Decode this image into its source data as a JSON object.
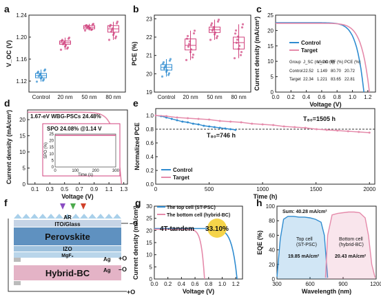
{
  "chart_data": [
    {
      "panel": "a",
      "type": "box",
      "categories": [
        "Control",
        "20 nm",
        "50 nm",
        "80 nm"
      ],
      "ylabel": "V_OC (V)",
      "ylim": [
        1.1,
        1.24
      ],
      "yticks": [
        "1.12",
        "1.16",
        "1.20",
        "1.24"
      ],
      "colors": [
        "#2e8bd0",
        "#d0427d",
        "#d0427d",
        "#d0427d"
      ],
      "boxes": [
        {
          "q1": 1.126,
          "median": 1.13,
          "q3": 1.134,
          "min": 1.119,
          "max": 1.141
        },
        {
          "q1": 1.187,
          "median": 1.19,
          "q3": 1.193,
          "min": 1.177,
          "max": 1.199
        },
        {
          "q1": 1.215,
          "median": 1.218,
          "q3": 1.221,
          "min": 1.212,
          "max": 1.224
        },
        {
          "q1": 1.209,
          "median": 1.215,
          "q3": 1.221,
          "min": 1.195,
          "max": 1.228
        }
      ]
    },
    {
      "panel": "b",
      "type": "box",
      "categories": [
        "Control",
        "20 nm",
        "50 nm",
        "80 nm"
      ],
      "ylabel": "PCE (%)",
      "ylim": [
        19,
        23.2
      ],
      "yticks": [
        "19",
        "20",
        "21",
        "22",
        "23"
      ],
      "colors": [
        "#2e8bd0",
        "#d0427d",
        "#d0427d",
        "#d0427d"
      ],
      "boxes": [
        {
          "q1": 20.2,
          "median": 20.35,
          "q3": 20.5,
          "min": 19.85,
          "max": 20.8
        },
        {
          "q1": 21.3,
          "median": 21.55,
          "q3": 21.9,
          "min": 20.75,
          "max": 22.35
        },
        {
          "q1": 22.25,
          "median": 22.4,
          "q3": 22.55,
          "min": 21.85,
          "max": 22.95
        },
        {
          "q1": 21.35,
          "median": 21.7,
          "q3": 22.0,
          "min": 20.85,
          "max": 22.7
        }
      ]
    },
    {
      "panel": "c",
      "type": "line",
      "xlabel": "Voltage (V)",
      "ylabel": "Current density (mA/cm²)",
      "xlim": [
        0,
        1.3
      ],
      "ylim": [
        0,
        25
      ],
      "xticks": [
        "0.0",
        "0.2",
        "0.4",
        "0.6",
        "0.8",
        "1.0",
        "1.2"
      ],
      "yticks": [
        "0",
        "5",
        "10",
        "15",
        "20",
        "25"
      ],
      "series": [
        {
          "name": "Control",
          "color": "#2e8bd0",
          "jsc": 22.52,
          "voc": 1.149
        },
        {
          "name": "Target",
          "color": "#e58aaa",
          "jsc": 22.34,
          "voc": 1.221
        }
      ],
      "table": {
        "headers": [
          "Group",
          "J_SC (mA cm⁻²)",
          "V_OC (V)",
          "FF (%)",
          "PCE (%)"
        ],
        "rows": [
          [
            "Control",
            "22.52",
            "1.149",
            "80.70",
            "20.72"
          ],
          [
            "Target",
            "22.34",
            "1.221",
            "83.65",
            "22.81"
          ]
        ]
      }
    },
    {
      "panel": "d",
      "type": "line",
      "xlabel": "Voltage (V)",
      "ylabel": "Current density (mA/cm²)",
      "xlim": [
        0,
        1.35
      ],
      "ylim": [
        0,
        23
      ],
      "xticks": [
        "0.1",
        "0.3",
        "0.5",
        "0.7",
        "0.9",
        "1.1",
        "1.3"
      ],
      "yticks": [
        "0",
        "5",
        "10",
        "15",
        "20"
      ],
      "series": [
        {
          "name": "1.67-eV WBG-PSCs",
          "color": "#e58aaa",
          "jsc": 22.3,
          "voc": 1.27
        }
      ],
      "annotation1": "1.67-eV WBG-PSCs 24.48%",
      "annotation2": "SPO 24.08% @1.14 V",
      "inset": {
        "xlabel": "Time (s)",
        "ylabel": "SPO (%)",
        "xlim": [
          0,
          300
        ],
        "ylim": [
          0,
          25
        ],
        "xticks": [
          "0",
          "100",
          "200",
          "300"
        ],
        "yticks": [
          "0",
          "5",
          "10",
          "15",
          "20",
          "25"
        ],
        "value": 24.08
      }
    },
    {
      "panel": "e",
      "type": "line",
      "xlabel": "Time (h)",
      "ylabel": "Normalized PCE",
      "xlim": [
        0,
        2050
      ],
      "ylim": [
        0,
        1.1
      ],
      "xticks": [
        "0",
        "500",
        "1000",
        "1500",
        "2000"
      ],
      "yticks": [
        "0.0",
        "0.2",
        "0.4",
        "0.6",
        "0.8",
        "1.0"
      ],
      "reference_line": 0.8,
      "series": [
        {
          "name": "Control",
          "color": "#2e8bd0",
          "x": [
            0,
            50,
            100,
            150,
            200,
            250,
            300,
            350,
            400,
            450,
            500,
            550,
            600,
            650,
            700,
            746
          ],
          "y": [
            1.0,
            0.99,
            0.97,
            0.95,
            0.93,
            0.91,
            0.9,
            0.88,
            0.87,
            0.85,
            0.84,
            0.83,
            0.82,
            0.81,
            0.8,
            0.79
          ]
        },
        {
          "name": "Target",
          "color": "#e58aaa",
          "x": [
            0,
            100,
            200,
            300,
            400,
            500,
            600,
            700,
            800,
            900,
            1000,
            1100,
            1200,
            1300,
            1400,
            1505,
            1600,
            1700,
            1800,
            1900,
            2000
          ],
          "y": [
            1.0,
            0.99,
            0.97,
            0.96,
            0.95,
            0.94,
            0.92,
            0.91,
            0.9,
            0.88,
            0.87,
            0.86,
            0.84,
            0.83,
            0.82,
            0.8,
            0.79,
            0.78,
            0.77,
            0.76,
            0.75
          ]
        }
      ],
      "annotations": [
        "T₈₀=746 h",
        "T₈₀=1505 h"
      ]
    },
    {
      "panel": "g",
      "type": "line",
      "xlabel": "Voltage (V)",
      "ylabel": "Current density (mA/cm²)",
      "xlim": [
        0,
        1.3
      ],
      "ylim": [
        0,
        30
      ],
      "xticks": [
        "0.0",
        "0.2",
        "0.4",
        "0.6",
        "0.8",
        "1.0",
        "1.2"
      ],
      "yticks": [
        "0",
        "5",
        "10",
        "15",
        "20",
        "25",
        "30"
      ],
      "series": [
        {
          "name": "The top cell (ST-PSC)",
          "color": "#2e8bd0",
          "jsc": 20.8,
          "voc": 1.22
        },
        {
          "name": "The bottom cell (hybrid-BC)",
          "color": "#e58aaa",
          "jsc": 20.5,
          "voc": 0.74
        }
      ],
      "label": "4T-tandem",
      "efficiency": "33.10%"
    },
    {
      "panel": "h",
      "type": "area",
      "xlabel": "Wavelength (nm)",
      "ylabel": "EQE (%)",
      "xlim": [
        300,
        1200
      ],
      "ylim": [
        0,
        100
      ],
      "xticks": [
        "300",
        "600",
        "900",
        "1200"
      ],
      "yticks": [
        "0",
        "20",
        "40",
        "60",
        "80",
        "100"
      ],
      "sum": "Sum: 40.28 mA/cm²",
      "series": [
        {
          "name": "Top cell (ST-PSC)",
          "color": "#2e8bd0",
          "value": "19.85 mA/cm²",
          "x": [
            300,
            330,
            360,
            400,
            450,
            500,
            550,
            600,
            650,
            700,
            730,
            750,
            760
          ],
          "y": [
            3,
            55,
            82,
            86,
            86,
            85,
            85,
            84,
            82,
            78,
            60,
            20,
            2
          ]
        },
        {
          "name": "Bottom cell (hybrid-BC)",
          "color": "#e58aaa",
          "value": "20.43 mA/cm²",
          "x": [
            740,
            760,
            800,
            850,
            900,
            950,
            1000,
            1050,
            1100,
            1130,
            1160,
            1190
          ],
          "y": [
            2,
            60,
            88,
            90,
            91,
            92,
            92,
            91,
            84,
            60,
            20,
            2
          ]
        }
      ]
    }
  ],
  "device": {
    "layers": [
      "AR",
      "ITO/Glass",
      "Perovskite",
      "IZO",
      "MgF₂",
      "Hybrid-BC"
    ],
    "terminals": [
      "Ag",
      "Ag"
    ]
  }
}
